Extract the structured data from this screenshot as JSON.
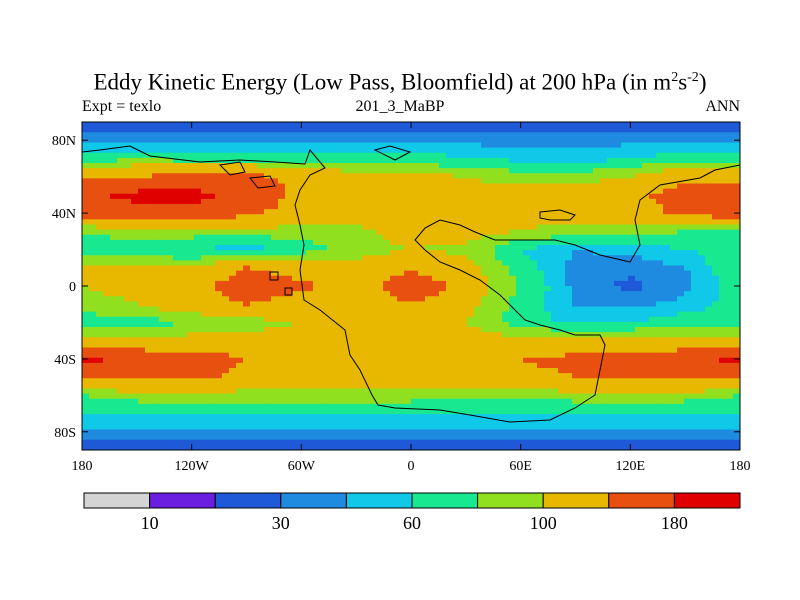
{
  "chart_data": {
    "type": "heatmap",
    "title_main": "Eddy Kinetic Energy (Low Pass, Bloomfield) at 200 hPa (in m",
    "title_sup1": "2",
    "title_mid": "s",
    "title_sup2": "-2",
    "title_end": ")",
    "subtitle_left": "Expt = texlo",
    "subtitle_center": "201_3_MaBP",
    "subtitle_right": "ANN",
    "x_tick_labels": [
      "180",
      "120W",
      "60W",
      "0",
      "60E",
      "120E",
      "180"
    ],
    "x_tick_values": [
      -180,
      -120,
      -60,
      0,
      60,
      120,
      180
    ],
    "y_tick_labels": [
      "80N",
      "40N",
      "0",
      "40S",
      "80S"
    ],
    "y_tick_values": [
      80,
      40,
      0,
      -40,
      -80
    ],
    "xlim": [
      -180,
      180
    ],
    "ylim": [
      -90,
      90
    ],
    "colorbar": {
      "levels": [
        10,
        20,
        30,
        45,
        60,
        80,
        100,
        140,
        180
      ],
      "colors": [
        "#d4d4d4",
        "#6a1ee0",
        "#1e5ad8",
        "#1e8ae0",
        "#10c8e8",
        "#18e890",
        "#90e020",
        "#e8b800",
        "#e85010",
        "#e00000"
      ],
      "labels": [
        "10",
        "30",
        "60",
        "100",
        "180"
      ],
      "label_positions": [
        1,
        3,
        5,
        7,
        9
      ]
    },
    "field": {
      "lats": [
        90,
        80,
        70,
        60,
        50,
        40,
        30,
        20,
        10,
        0,
        -10,
        -20,
        -30,
        -40,
        -50,
        -60,
        -70,
        -80,
        -90
      ],
      "lons": [
        -180,
        -150,
        -120,
        -90,
        -60,
        -30,
        0,
        30,
        60,
        90,
        120,
        150,
        180
      ],
      "values": [
        [
          20,
          20,
          20,
          20,
          20,
          20,
          20,
          20,
          20,
          20,
          20,
          20,
          20
        ],
        [
          40,
          40,
          40,
          40,
          40,
          40,
          40,
          40,
          40,
          40,
          40,
          40,
          40
        ],
        [
          70,
          75,
          70,
          70,
          70,
          70,
          70,
          60,
          55,
          50,
          60,
          70,
          70
        ],
        [
          130,
          140,
          150,
          150,
          130,
          110,
          110,
          100,
          90,
          90,
          100,
          130,
          130
        ],
        [
          170,
          190,
          190,
          170,
          130,
          120,
          120,
          110,
          110,
          110,
          130,
          160,
          170
        ],
        [
          155,
          170,
          170,
          150,
          120,
          110,
          110,
          105,
          110,
          110,
          120,
          150,
          160
        ],
        [
          80,
          90,
          90,
          90,
          90,
          95,
          110,
          110,
          100,
          90,
          90,
          80,
          80
        ],
        [
          70,
          70,
          60,
          50,
          70,
          90,
          100,
          95,
          60,
          45,
          50,
          60,
          70
        ],
        [
          100,
          100,
          100,
          140,
          120,
          110,
          130,
          110,
          70,
          40,
          35,
          45,
          80
        ],
        [
          100,
          110,
          120,
          170,
          150,
          110,
          180,
          120,
          80,
          40,
          25,
          40,
          70
        ],
        [
          90,
          100,
          120,
          140,
          120,
          110,
          140,
          110,
          70,
          45,
          40,
          50,
          70
        ],
        [
          70,
          70,
          80,
          90,
          100,
          110,
          110,
          100,
          70,
          55,
          60,
          70,
          70
        ],
        [
          110,
          110,
          110,
          110,
          110,
          110,
          110,
          110,
          110,
          110,
          110,
          110,
          110
        ],
        [
          190,
          170,
          160,
          140,
          130,
          140,
          140,
          130,
          140,
          150,
          150,
          170,
          190
        ],
        [
          140,
          150,
          150,
          130,
          130,
          130,
          130,
          120,
          130,
          140,
          150,
          150,
          140
        ],
        [
          80,
          90,
          90,
          90,
          90,
          90,
          90,
          85,
          85,
          90,
          90,
          90,
          80
        ],
        [
          60,
          60,
          60,
          60,
          60,
          60,
          60,
          60,
          60,
          60,
          60,
          60,
          60
        ],
        [
          40,
          40,
          40,
          40,
          40,
          40,
          40,
          40,
          40,
          40,
          40,
          40,
          40
        ],
        [
          20,
          20,
          20,
          20,
          20,
          20,
          20,
          20,
          20,
          20,
          20,
          20,
          20
        ]
      ]
    }
  }
}
